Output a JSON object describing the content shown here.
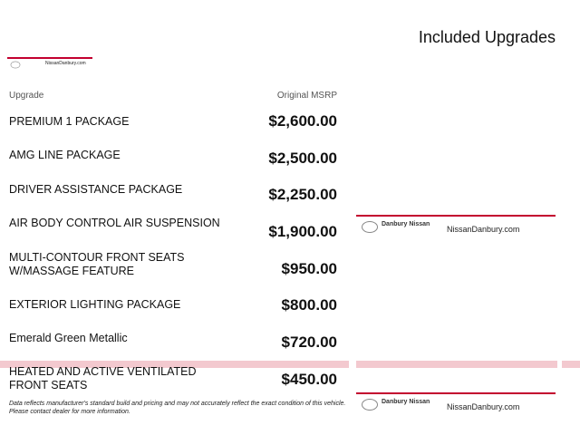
{
  "header": {
    "title": "Included Upgrades"
  },
  "logo": {
    "name": "Danbury Nissan",
    "site": "NissanDanbury.com"
  },
  "table": {
    "columns": [
      "Upgrade",
      "Original MSRP"
    ],
    "rows": [
      {
        "name": [
          "PREMIUM 1 PACKAGE"
        ],
        "price": "$2,600.00"
      },
      {
        "name": [
          "AMG LINE PACKAGE"
        ],
        "price": "$2,500.00"
      },
      {
        "name": [
          "DRIVER ASSISTANCE PACKAGE"
        ],
        "price": "$2,250.00"
      },
      {
        "name": [
          "AIR BODY CONTROL AIR SUSPENSION"
        ],
        "price": "$1,900.00"
      },
      {
        "name": [
          "MULTI-CONTOUR FRONT SEATS",
          "W/MASSAGE FEATURE"
        ],
        "price": "$950.00"
      },
      {
        "name": [
          "EXTERIOR LIGHTING PACKAGE"
        ],
        "price": "$800.00"
      },
      {
        "name": [
          "Emerald Green Metallic"
        ],
        "price": "$720.00"
      },
      {
        "name": [
          "HEATED AND ACTIVE VENTILATED",
          "FRONT SEATS"
        ],
        "price": "$450.00"
      }
    ]
  },
  "footer": {
    "note": [
      "Data reflects manufacturer's standard build and pricing and may not accurately reflect the exact condition of this vehicle.",
      "Please contact dealer for more information."
    ]
  }
}
